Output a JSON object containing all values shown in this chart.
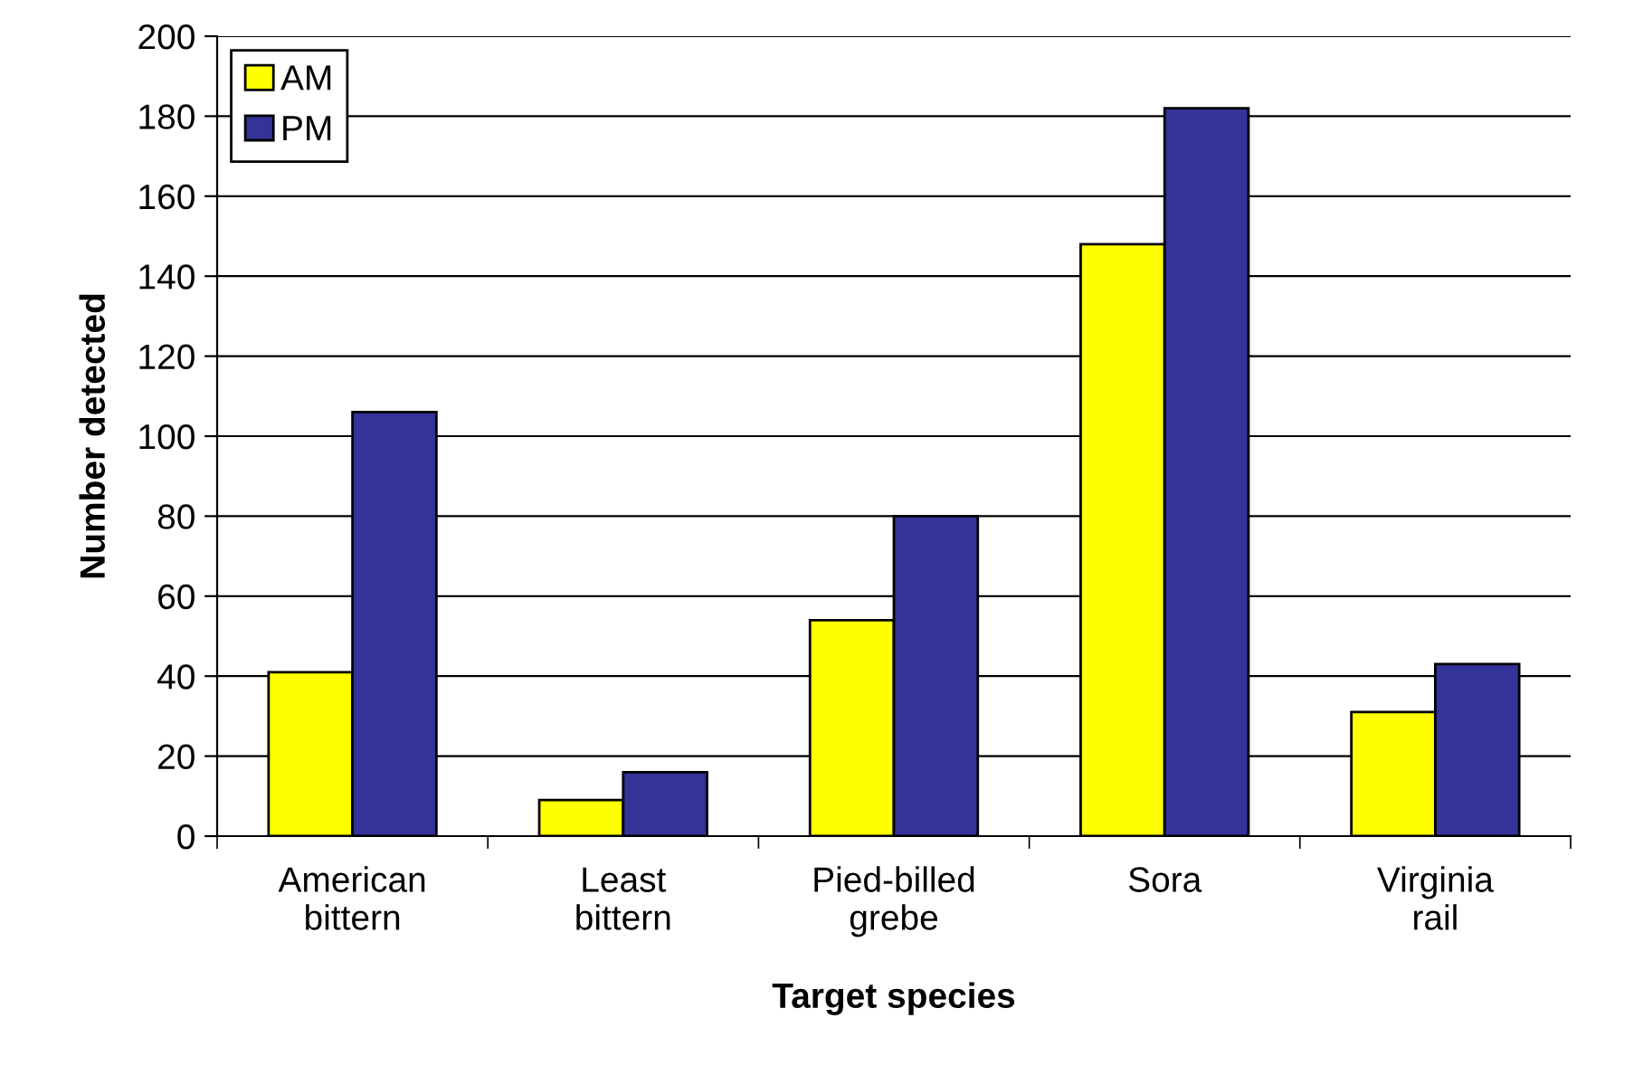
{
  "chart_data": {
    "type": "bar",
    "xlabel": "Target species",
    "ylabel": "Number detected",
    "categories": [
      "American\nbittern",
      "Least\nbittern",
      "Pied-billed\ngrebe",
      "Sora",
      "Virginia\nrail"
    ],
    "series": [
      {
        "name": "AM",
        "color": "#ffff00",
        "values": [
          41,
          9,
          54,
          148,
          31
        ]
      },
      {
        "name": "PM",
        "color": "#333399",
        "values": [
          106,
          16,
          80,
          182,
          43
        ]
      }
    ],
    "ylim": [
      0,
      200
    ],
    "yticks": [
      0,
      20,
      40,
      60,
      80,
      100,
      120,
      140,
      160,
      180,
      200
    ],
    "grid": "y",
    "legend": "top left"
  }
}
